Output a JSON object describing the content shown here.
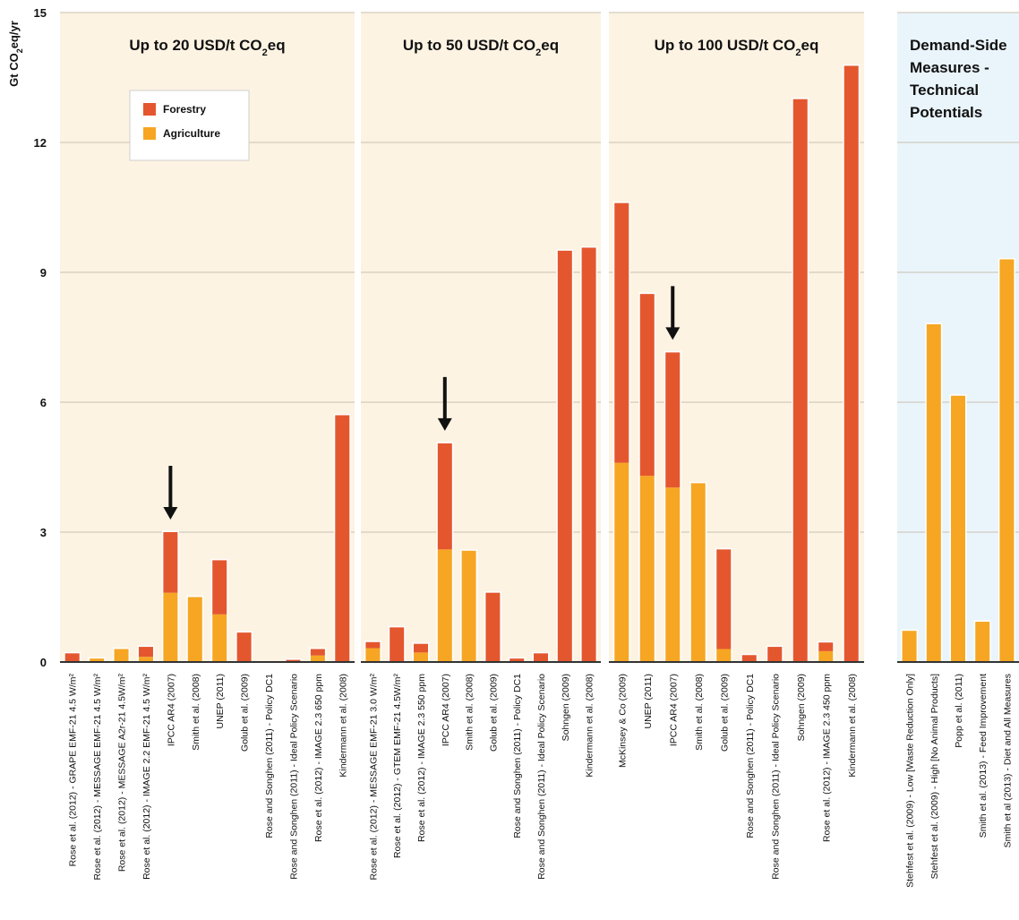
{
  "chart_data": {
    "type": "bar",
    "stacked": true,
    "ylabel_main": "Gt CO",
    "ylabel_sub": "2",
    "ylabel_tail": "eq/yr",
    "ylim": [
      0,
      15
    ],
    "yticks": [
      0,
      3,
      6,
      9,
      12,
      15
    ],
    "grid": true,
    "legend": {
      "placement": "top-left of first panel",
      "entries": [
        {
          "name": "Forestry",
          "color": "#e4572e"
        },
        {
          "name": "Agriculture",
          "color": "#f6a623"
        }
      ]
    },
    "colors": {
      "forestry": "#e4572e",
      "agriculture": "#f6a623",
      "panel_bg": "#fdf3e3",
      "demand_bg": "#eaf5fb"
    },
    "panels": [
      {
        "title_main": "Up to 20 USD/t CO",
        "title_sub": "2",
        "title_tail": "eq",
        "bg": "panel_bg",
        "arrow_index": 4,
        "bars": [
          {
            "label": "Rose et al. (2012) - GRAPE EMF-21 4.5 W/m²",
            "agriculture": 0,
            "forestry": 0.2
          },
          {
            "label": "Rose et al. (2012) - MESSAGE EMF-21 4.5 W/m²",
            "agriculture": 0.08,
            "forestry": 0
          },
          {
            "label": "Rose et al. (2012) - MESSAGE A2r-21 4.5W/m²",
            "agriculture": 0.3,
            "forestry": 0
          },
          {
            "label": "Rose et al. (2012) - IMAGE 2.2 EMF-21 4.5 W/m²",
            "agriculture": 0.12,
            "forestry": 0.23
          },
          {
            "label": "IPCC AR4 (2007)",
            "agriculture": 1.6,
            "forestry": 1.4
          },
          {
            "label": "Smith et al. (2008)",
            "agriculture": 1.5,
            "forestry": 0
          },
          {
            "label": "UNEP (2011)",
            "agriculture": 1.1,
            "forestry": 1.25
          },
          {
            "label": "Golub et al. (2009)",
            "agriculture": 0,
            "forestry": 0.68
          },
          {
            "label": "Rose and Songhen (2011) - Policy DC1",
            "agriculture": 0,
            "forestry": 0
          },
          {
            "label": "Rose and Songhen (2011) - Ideal Policy Scenario",
            "agriculture": 0,
            "forestry": 0.05
          },
          {
            "label": "Rose et al. (2012) - IMAGE 2.3 650 ppm",
            "agriculture": 0.15,
            "forestry": 0.15
          },
          {
            "label": "Kindermann et al. (2008)",
            "agriculture": 0,
            "forestry": 5.7
          }
        ]
      },
      {
        "title_main": "Up to 50 USD/t CO",
        "title_sub": "2",
        "title_tail": "eq",
        "bg": "panel_bg",
        "arrow_index": 3,
        "bars": [
          {
            "label": "Rose et al. (2012) - MESSAGE EMF-21 3.0 W/m²",
            "agriculture": 0.32,
            "forestry": 0.14
          },
          {
            "label": "Rose et al. (2012) - GTEM EMF-21 4.5W/m²",
            "agriculture": 0,
            "forestry": 0.8
          },
          {
            "label": "Rose et al. (2012) - IMAGE 2.3 550 ppm",
            "agriculture": 0.22,
            "forestry": 0.2
          },
          {
            "label": "IPCC AR4 (2007)",
            "agriculture": 2.6,
            "forestry": 2.45
          },
          {
            "label": "Smith et al. (2008)",
            "agriculture": 2.57,
            "forestry": 0
          },
          {
            "label": "Golub et al. (2009)",
            "agriculture": 0,
            "forestry": 1.6
          },
          {
            "label": "Rose and Songhen (2011) - Policy DC1",
            "agriculture": 0,
            "forestry": 0.08
          },
          {
            "label": "Rose and Songhen (2011) - Ideal Policy Scenario",
            "agriculture": 0,
            "forestry": 0.2
          },
          {
            "label": "Sohngen (2009)",
            "agriculture": 0,
            "forestry": 9.5
          },
          {
            "label": "Kindermann et al. (2008)",
            "agriculture": 0,
            "forestry": 9.57
          }
        ]
      },
      {
        "title_main": "Up to 100 USD/t CO",
        "title_sub": "2",
        "title_tail": "eq",
        "bg": "panel_bg",
        "arrow_index": 2,
        "bars": [
          {
            "label": "McKinsey & Co (2009)",
            "agriculture": 4.6,
            "forestry": 6.0
          },
          {
            "label": "UNEP (2011)",
            "agriculture": 4.3,
            "forestry": 4.2
          },
          {
            "label": "IPCC AR4 (2007)",
            "agriculture": 4.03,
            "forestry": 3.12
          },
          {
            "label": "Smith et al. (2008)",
            "agriculture": 4.13,
            "forestry": 0
          },
          {
            "label": "Golub et al. (2009)",
            "agriculture": 0.3,
            "forestry": 2.3
          },
          {
            "label": "Rose and Songhen (2011) - Policy DC1",
            "agriculture": 0,
            "forestry": 0.16
          },
          {
            "label": "Rose and Songhen (2011) - Ideal Policy Scenario",
            "agriculture": 0,
            "forestry": 0.35
          },
          {
            "label": "Sohngen (2009)",
            "agriculture": 0,
            "forestry": 13.0
          },
          {
            "label": "Rose et al. (2012) - IMAGE 2.3 450 ppm",
            "agriculture": 0.25,
            "forestry": 0.2
          },
          {
            "label": "Kindermann et al. (2008)",
            "agriculture": 0,
            "forestry": 13.77
          }
        ]
      },
      {
        "title_lines": [
          "Demand-Side",
          "Measures -",
          "Technical",
          "Potentials"
        ],
        "bg": "demand_bg",
        "arrow_index": -1,
        "bars": [
          {
            "label": "Stehfest et al. (2009) - Low [Waste Reduction Only]",
            "agriculture": 0.72,
            "forestry": 0
          },
          {
            "label": "Stehfest et al. (2009) - High [No Animal Products]",
            "agriculture": 7.8,
            "forestry": 0
          },
          {
            "label": "Popp et al. (2011)",
            "agriculture": 6.15,
            "forestry": 0
          },
          {
            "label": "Smith et al. (2013) - Feed Improvement",
            "agriculture": 0.93,
            "forestry": 0
          },
          {
            "label": "Smith et al (2013) - Diet and All Measures",
            "agriculture": 9.3,
            "forestry": 0
          }
        ]
      }
    ]
  }
}
